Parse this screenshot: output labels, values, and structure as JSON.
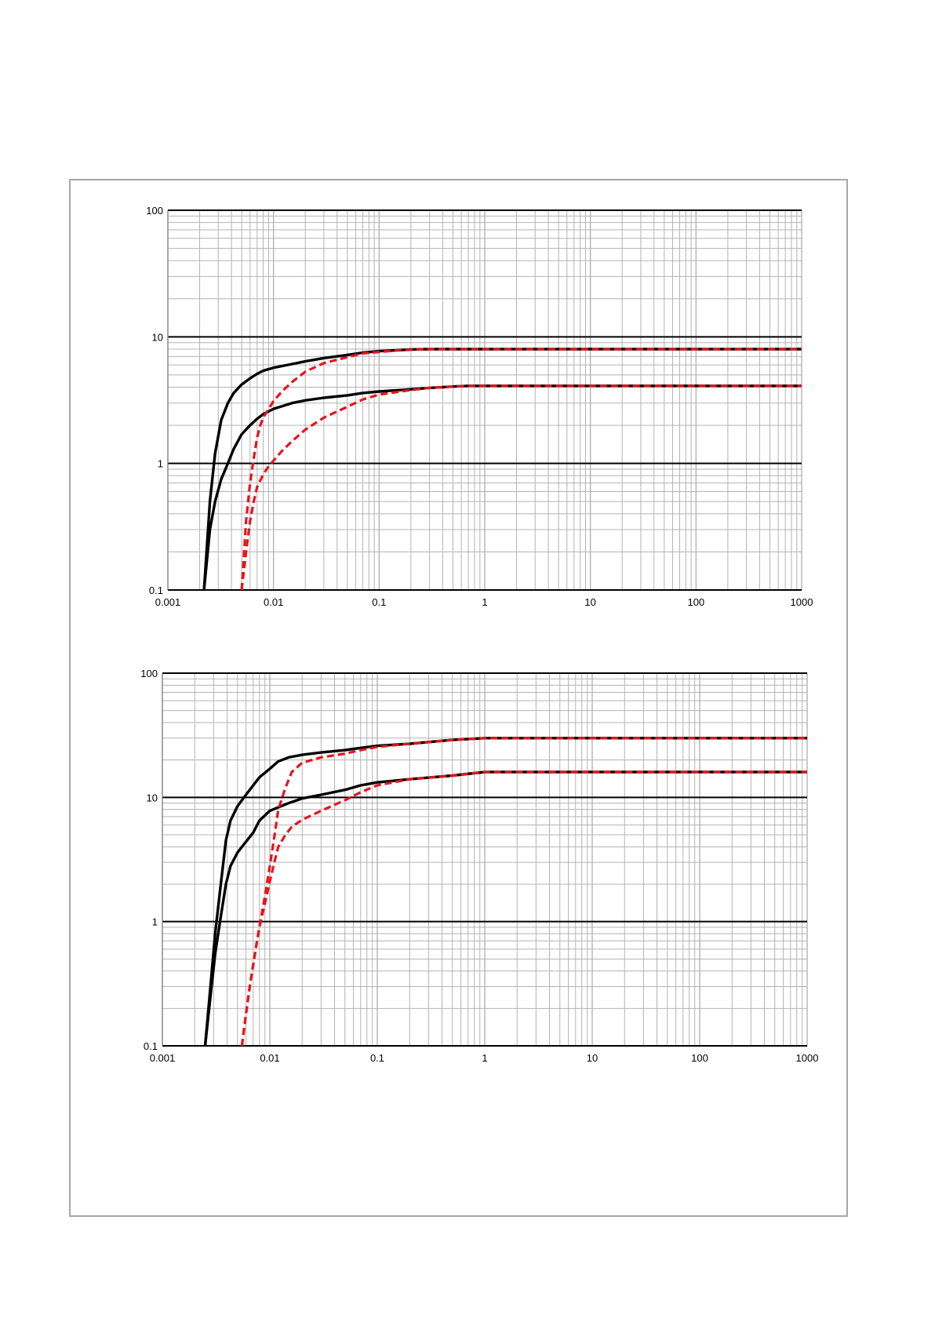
{
  "colors": {
    "background": "#ffffff",
    "frame_border": "#a6a6a6",
    "minor_grid": "#b3b3b3",
    "major_grid": "#000000",
    "solid_series": "#000000",
    "dashed_series": "#e8141c"
  },
  "chart_data": [
    {
      "type": "line",
      "title": "",
      "xlabel": "",
      "ylabel": "",
      "x_scale": "log",
      "y_scale": "log",
      "xlim": [
        0.001,
        1000
      ],
      "ylim": [
        0.1,
        100
      ],
      "grid": true,
      "legend": "none",
      "x_ticks": [
        "0.001",
        "0.01",
        "0.1",
        "1",
        "10",
        "100",
        "1000"
      ],
      "y_ticks": [
        "0.1",
        "1",
        "10",
        "100"
      ],
      "series": [
        {
          "style": "solid",
          "color": "#000000",
          "x": [
            0.0022,
            0.0025,
            0.0028,
            0.0032,
            0.0037,
            0.0042,
            0.005,
            0.006,
            0.007,
            0.008,
            0.01,
            0.015,
            0.02,
            0.03,
            0.05,
            0.07,
            0.1,
            0.15,
            0.2,
            0.3,
            0.5,
            1,
            10,
            100,
            1000
          ],
          "y": [
            0.1,
            0.5,
            1.2,
            2.2,
            3.0,
            3.6,
            4.2,
            4.7,
            5.1,
            5.4,
            5.7,
            6.1,
            6.4,
            6.8,
            7.2,
            7.5,
            7.7,
            7.85,
            7.95,
            8.0,
            8.0,
            8.0,
            8.0,
            8.0,
            8.0
          ]
        },
        {
          "style": "solid",
          "color": "#000000",
          "x": [
            0.0022,
            0.0025,
            0.0028,
            0.0032,
            0.0037,
            0.0042,
            0.005,
            0.006,
            0.007,
            0.008,
            0.01,
            0.015,
            0.02,
            0.03,
            0.05,
            0.07,
            0.1,
            0.2,
            0.3,
            0.5,
            0.7,
            1,
            10,
            100,
            1000
          ],
          "y": [
            0.1,
            0.3,
            0.5,
            0.75,
            1.0,
            1.3,
            1.7,
            2.0,
            2.25,
            2.45,
            2.7,
            3.0,
            3.15,
            3.3,
            3.45,
            3.6,
            3.7,
            3.85,
            3.95,
            4.05,
            4.1,
            4.1,
            4.1,
            4.1,
            4.1
          ]
        },
        {
          "style": "dashed",
          "color": "#e8141c",
          "x": [
            0.005,
            0.0055,
            0.006,
            0.0065,
            0.007,
            0.0075,
            0.008,
            0.009,
            0.01,
            0.012,
            0.015,
            0.02,
            0.03,
            0.05,
            0.07,
            0.1,
            0.15,
            0.2,
            0.3,
            1,
            10,
            100,
            1000
          ],
          "y": [
            0.1,
            0.35,
            0.7,
            1.1,
            1.6,
            2.0,
            2.3,
            2.7,
            3.1,
            3.7,
            4.4,
            5.3,
            6.2,
            6.9,
            7.4,
            7.6,
            7.8,
            7.9,
            8.0,
            8.0,
            8.0,
            8.0,
            8.0
          ]
        },
        {
          "style": "dashed",
          "color": "#e8141c",
          "x": [
            0.005,
            0.0055,
            0.006,
            0.0065,
            0.007,
            0.008,
            0.009,
            0.01,
            0.012,
            0.015,
            0.02,
            0.03,
            0.05,
            0.07,
            0.1,
            0.2,
            0.3,
            0.5,
            0.7,
            1,
            10,
            100,
            1000
          ],
          "y": [
            0.1,
            0.2,
            0.35,
            0.5,
            0.65,
            0.82,
            0.95,
            1.05,
            1.25,
            1.5,
            1.85,
            2.3,
            2.8,
            3.2,
            3.5,
            3.8,
            3.95,
            4.05,
            4.1,
            4.1,
            4.1,
            4.1,
            4.1
          ]
        }
      ]
    },
    {
      "type": "line",
      "title": "",
      "xlabel": "",
      "ylabel": "",
      "x_scale": "log",
      "y_scale": "log",
      "xlim": [
        0.001,
        1000
      ],
      "ylim": [
        0.1,
        100
      ],
      "grid": true,
      "legend": "none",
      "x_ticks": [
        "0.001",
        "0.01",
        "0.1",
        "1",
        "10",
        "100",
        "1000"
      ],
      "y_ticks": [
        "0.1",
        "1",
        "10",
        "100"
      ],
      "series": [
        {
          "style": "solid",
          "color": "#000000",
          "x": [
            0.0025,
            0.0028,
            0.0031,
            0.0035,
            0.0039,
            0.0043,
            0.005,
            0.006,
            0.007,
            0.008,
            0.01,
            0.012,
            0.015,
            0.02,
            0.03,
            0.05,
            0.07,
            0.1,
            0.2,
            0.5,
            1,
            10,
            100,
            1000
          ],
          "y": [
            0.1,
            0.3,
            0.8,
            2.0,
            4.5,
            6.5,
            8.5,
            10.5,
            12.5,
            14.5,
            17.0,
            19.5,
            21.0,
            22.0,
            23.0,
            24.0,
            25.0,
            26.0,
            27.0,
            29.0,
            30.0,
            30.0,
            30.0,
            30.0
          ]
        },
        {
          "style": "solid",
          "color": "#000000",
          "x": [
            0.0025,
            0.0028,
            0.0031,
            0.0035,
            0.0039,
            0.0043,
            0.005,
            0.006,
            0.007,
            0.008,
            0.01,
            0.015,
            0.02,
            0.03,
            0.05,
            0.07,
            0.1,
            0.2,
            0.5,
            1,
            10,
            100,
            1000
          ],
          "y": [
            0.1,
            0.25,
            0.55,
            1.1,
            2.0,
            2.8,
            3.6,
            4.4,
            5.2,
            6.5,
            7.8,
            9.0,
            9.8,
            10.5,
            11.5,
            12.5,
            13.2,
            14.0,
            15.0,
            16.0,
            16.0,
            16.0,
            16.0
          ]
        },
        {
          "style": "dashed",
          "color": "#e8141c",
          "x": [
            0.0055,
            0.006,
            0.0065,
            0.007,
            0.0075,
            0.008,
            0.009,
            0.01,
            0.011,
            0.012,
            0.014,
            0.016,
            0.02,
            0.03,
            0.05,
            0.07,
            0.1,
            0.2,
            0.5,
            1,
            10,
            100,
            1000
          ],
          "y": [
            0.1,
            0.18,
            0.3,
            0.45,
            0.65,
            0.9,
            1.6,
            2.8,
            4.8,
            8.0,
            12.0,
            16.0,
            19.0,
            21.0,
            22.5,
            24.0,
            25.5,
            27.0,
            29.0,
            30.0,
            30.0,
            30.0,
            30.0
          ]
        },
        {
          "style": "dashed",
          "color": "#e8141c",
          "x": [
            0.0055,
            0.006,
            0.0065,
            0.007,
            0.0075,
            0.008,
            0.009,
            0.01,
            0.011,
            0.012,
            0.014,
            0.016,
            0.02,
            0.03,
            0.05,
            0.07,
            0.1,
            0.2,
            0.5,
            1,
            10,
            100,
            1000
          ],
          "y": [
            0.1,
            0.18,
            0.3,
            0.45,
            0.65,
            0.9,
            1.4,
            2.1,
            3.0,
            4.0,
            5.0,
            5.8,
            6.6,
            7.8,
            9.5,
            11.0,
            12.5,
            14.0,
            15.0,
            16.0,
            16.0,
            16.0,
            16.0
          ]
        }
      ]
    }
  ]
}
